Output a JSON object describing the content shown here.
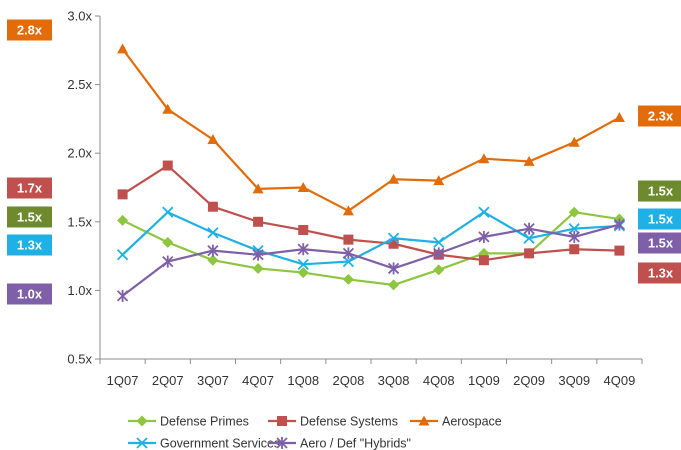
{
  "chart_data": {
    "type": "line",
    "categories": [
      "1Q07",
      "2Q07",
      "3Q07",
      "4Q07",
      "1Q08",
      "2Q08",
      "3Q08",
      "4Q08",
      "1Q09",
      "2Q09",
      "3Q09",
      "4Q09"
    ],
    "ylim": [
      0.5,
      3.0
    ],
    "y_ticks": [
      "0.5x",
      "1.0x",
      "1.5x",
      "2.0x",
      "2.5x",
      "3.0x"
    ],
    "y_tick_values": [
      0.5,
      1.0,
      1.5,
      2.0,
      2.5,
      3.0
    ],
    "grid": false,
    "legend_position": "bottom",
    "series": [
      {
        "name": "Defense Primes",
        "color": "#8DC63F",
        "marker": "diamond",
        "values": [
          1.51,
          1.35,
          1.22,
          1.16,
          1.13,
          1.08,
          1.04,
          1.15,
          1.27,
          1.27,
          1.57,
          1.52
        ]
      },
      {
        "name": "Defense Systems",
        "color": "#C0504D",
        "marker": "square",
        "values": [
          1.7,
          1.91,
          1.61,
          1.5,
          1.44,
          1.37,
          1.34,
          1.26,
          1.22,
          1.27,
          1.3,
          1.29
        ]
      },
      {
        "name": "Aerospace",
        "color": "#E36C0A",
        "marker": "triangle",
        "values": [
          2.76,
          2.32,
          2.1,
          1.74,
          1.75,
          1.58,
          1.81,
          1.8,
          1.96,
          1.94,
          2.08,
          2.26
        ]
      },
      {
        "name": "Government Services",
        "color": "#1FB1E6",
        "marker": "x",
        "values": [
          1.26,
          1.57,
          1.42,
          1.29,
          1.19,
          1.21,
          1.38,
          1.35,
          1.57,
          1.38,
          1.45,
          1.47
        ]
      },
      {
        "name": "Aero / Def \"Hybrids\"",
        "color": "#7F5FA8",
        "marker": "star",
        "values": [
          0.96,
          1.21,
          1.29,
          1.26,
          1.3,
          1.27,
          1.16,
          1.27,
          1.39,
          1.45,
          1.39,
          1.48
        ]
      }
    ],
    "badges_left": [
      {
        "text": "2.8x",
        "color": "#E36C0A"
      },
      {
        "text": "1.7x",
        "color": "#C0504D"
      },
      {
        "text": "1.5x",
        "color": "#6D8B2E"
      },
      {
        "text": "1.3x",
        "color": "#1FB1E6"
      },
      {
        "text": "1.0x",
        "color": "#7F5FA8"
      }
    ],
    "badges_right": [
      {
        "text": "2.3x",
        "color": "#E36C0A"
      },
      {
        "text": "1.5x",
        "color": "#6D8B2E"
      },
      {
        "text": "1.5x",
        "color": "#1FB1E6"
      },
      {
        "text": "1.5x",
        "color": "#7F5FA8"
      },
      {
        "text": "1.3x",
        "color": "#C0504D"
      }
    ]
  }
}
